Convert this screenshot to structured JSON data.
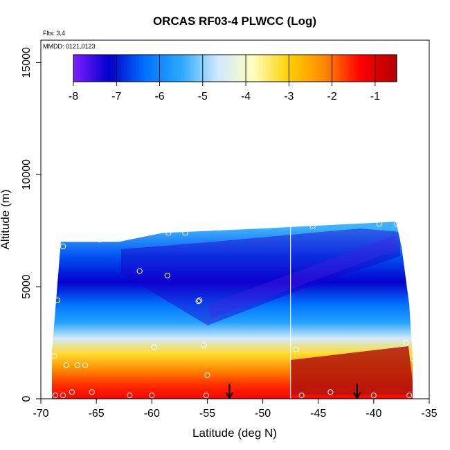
{
  "chart_data": {
    "type": "heatmap",
    "title": "ORCAS RF03-4 PLWCC (Log)",
    "xlabel": "Latitude (deg N)",
    "ylabel": "Altitude (m)",
    "annotations": {
      "flights": "Flts: 3,4",
      "dates": "MMDD: 0121,0123"
    },
    "xlim": [
      -70,
      -35
    ],
    "ylim": [
      0,
      16000
    ],
    "x_ticks": [
      -70,
      -65,
      -60,
      -55,
      -50,
      -45,
      -40,
      -35
    ],
    "y_ticks": [
      0,
      5000,
      10000,
      15000
    ],
    "colorbar": {
      "ticks": [
        -8,
        -7,
        -6,
        -5,
        -4,
        -3,
        -2,
        -1
      ],
      "range": [
        -8,
        -0.5
      ],
      "colors": [
        "#7f1fff",
        "#0000cc",
        "#0072ff",
        "#2aa9ff",
        "#cfe8ff",
        "#ffffc0",
        "#ffd000",
        "#ff8800",
        "#ff0000",
        "#b00000"
      ]
    },
    "marker_arrows_lat": [
      -53,
      -41.5
    ],
    "vertical_line_lat": -47.5,
    "region": [
      {
        "lat": -69,
        "alt_top": 2100
      },
      {
        "lat": -68.2,
        "alt_top": 7000
      },
      {
        "lat": -63,
        "alt_top": 7000
      },
      {
        "lat": -59,
        "alt_top": 7400
      },
      {
        "lat": -50,
        "alt_top": 7600
      },
      {
        "lat": -38,
        "alt_top": 7900
      },
      {
        "lat": -37.5,
        "alt_top": 6800
      },
      {
        "lat": -36.8,
        "alt_top": 4200
      },
      {
        "lat": -36.5,
        "alt_top": 1900
      }
    ],
    "layers": [
      {
        "alt": 0,
        "value": -1.3
      },
      {
        "alt": 600,
        "value": -1.6
      },
      {
        "alt": 1300,
        "value": -2.2
      },
      {
        "alt": 2000,
        "value": -3.2
      },
      {
        "alt": 2700,
        "value": -4.6
      },
      {
        "alt": 3400,
        "value": -5.6
      },
      {
        "alt": 4200,
        "value": -6.3
      },
      {
        "alt": 5200,
        "value": -7.2
      },
      {
        "alt": 6300,
        "value": -6.6
      },
      {
        "alt": 7600,
        "value": -5.4
      }
    ],
    "sample_points": [
      {
        "lat": -68.8,
        "alt": 1900
      },
      {
        "lat": -68.7,
        "alt": 150
      },
      {
        "lat": -68,
        "alt": 150
      },
      {
        "lat": -67.7,
        "alt": 1500
      },
      {
        "lat": -67.2,
        "alt": 300
      },
      {
        "lat": -66.7,
        "alt": 1500
      },
      {
        "lat": -66,
        "alt": 1500
      },
      {
        "lat": -65.4,
        "alt": 300
      },
      {
        "lat": -62,
        "alt": 150
      },
      {
        "lat": -60,
        "alt": 150
      },
      {
        "lat": -59.8,
        "alt": 2300
      },
      {
        "lat": -55.3,
        "alt": 2400
      },
      {
        "lat": -55.1,
        "alt": 150
      },
      {
        "lat": -55,
        "alt": 1050
      },
      {
        "lat": -55.7,
        "alt": 4400
      },
      {
        "lat": -55.8,
        "alt": 4350
      },
      {
        "lat": -58.6,
        "alt": 5500
      },
      {
        "lat": -61.1,
        "alt": 5700
      },
      {
        "lat": -64.7,
        "alt": 7100
      },
      {
        "lat": -68,
        "alt": 6800
      },
      {
        "lat": -68.5,
        "alt": 4400
      },
      {
        "lat": -58.5,
        "alt": 7400
      },
      {
        "lat": -57,
        "alt": 7400
      },
      {
        "lat": -45.5,
        "alt": 7700
      },
      {
        "lat": -39.5,
        "alt": 7800
      },
      {
        "lat": -37.9,
        "alt": 7800
      },
      {
        "lat": -47,
        "alt": 2200
      },
      {
        "lat": -46.5,
        "alt": 150
      },
      {
        "lat": -43.9,
        "alt": 300
      },
      {
        "lat": -40,
        "alt": 150
      },
      {
        "lat": -36.8,
        "alt": 150
      },
      {
        "lat": -37.1,
        "alt": 2500
      },
      {
        "lat": -36.5,
        "alt": 1800
      }
    ]
  }
}
